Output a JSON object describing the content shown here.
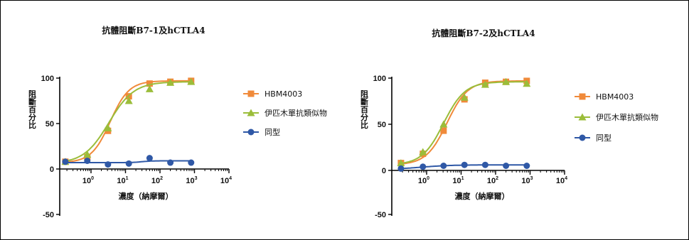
{
  "colors": {
    "hbm": "#f08a3a",
    "ipi": "#9bbd3a",
    "iso": "#2f58a6"
  },
  "chart_data": [
    {
      "type": "line",
      "title": "抗體阻斷B7-1及hCTLA4",
      "xlabel": "濃度（納摩爾）",
      "ylabel": "阻斷百分比",
      "xscale": "log",
      "xlim": [
        0.12,
        10000
      ],
      "ylim": [
        -50,
        100
      ],
      "xticks": [
        {
          "base": "10",
          "exp": "0",
          "value": 1
        },
        {
          "base": "10",
          "exp": "1",
          "value": 10
        },
        {
          "base": "10",
          "exp": "2",
          "value": 100
        },
        {
          "base": "10",
          "exp": "3",
          "value": 1000
        },
        {
          "base": "10",
          "exp": "4",
          "value": 10000
        }
      ],
      "yticks": [
        "100",
        "50",
        "0",
        "-50"
      ],
      "series": [
        {
          "name": "HBM4003",
          "marker": "square",
          "color_key": "hbm",
          "x": [
            0.18,
            0.78,
            3.1,
            12.5,
            50,
            200,
            800
          ],
          "y": [
            8,
            13,
            42,
            80,
            94,
            96,
            97
          ],
          "curve": {
            "bottom": 7,
            "top": 97,
            "ec50": 3.6,
            "hill": 1.6
          }
        },
        {
          "name": "伊匹木單抗類似物",
          "marker": "triangle",
          "color_key": "ipi",
          "x": [
            0.18,
            0.78,
            3.1,
            12.5,
            50,
            200,
            800
          ],
          "y": [
            8,
            16,
            45,
            75,
            88,
            95,
            96
          ],
          "curve": {
            "bottom": 6,
            "top": 96,
            "ec50": 3.3,
            "hill": 1.2
          }
        },
        {
          "name": "同型",
          "marker": "circle",
          "color_key": "iso",
          "x": [
            0.18,
            0.78,
            3.1,
            12.5,
            50,
            200,
            800
          ],
          "y": [
            8,
            9,
            5,
            6,
            12,
            7,
            7
          ],
          "curve": {
            "bottom": 7,
            "top": 9,
            "ec50": 30,
            "hill": 3
          }
        }
      ],
      "legend": "right"
    },
    {
      "type": "line",
      "title": "抗體阻斷B7-2及hCTLA4",
      "xlabel": "濃度（納摩爾）",
      "ylabel": "阻斷百分比",
      "xscale": "log",
      "xlim": [
        0.12,
        10000
      ],
      "ylim": [
        -50,
        100
      ],
      "xticks": [
        {
          "base": "10",
          "exp": "0",
          "value": 1
        },
        {
          "base": "10",
          "exp": "1",
          "value": 10
        },
        {
          "base": "10",
          "exp": "2",
          "value": 100
        },
        {
          "base": "10",
          "exp": "3",
          "value": 1000
        },
        {
          "base": "10",
          "exp": "4",
          "value": 10000
        }
      ],
      "yticks": [
        "100",
        "50",
        "0",
        "-50"
      ],
      "series": [
        {
          "name": "HBM4003",
          "marker": "square",
          "color_key": "hbm",
          "x": [
            0.18,
            0.78,
            3.1,
            12.5,
            50,
            200,
            800
          ],
          "y": [
            8,
            18,
            43,
            77,
            95,
            96,
            97
          ],
          "curve": {
            "bottom": 6,
            "top": 97,
            "ec50": 3.9,
            "hill": 1.45
          }
        },
        {
          "name": "伊匹木單抗類似物",
          "marker": "triangle",
          "color_key": "ipi",
          "x": [
            0.18,
            0.78,
            3.1,
            12.5,
            50,
            200,
            800
          ],
          "y": [
            8,
            20,
            50,
            79,
            93,
            96,
            94
          ],
          "curve": {
            "bottom": 6,
            "top": 96,
            "ec50": 3.1,
            "hill": 1.4
          }
        },
        {
          "name": "同型",
          "marker": "circle",
          "color_key": "iso",
          "x": [
            0.18,
            0.78,
            3.1,
            12.5,
            50,
            200,
            800
          ],
          "y": [
            2,
            4,
            5,
            6,
            6,
            5,
            5
          ],
          "curve": {
            "bottom": 1,
            "top": 6,
            "ec50": 0.7,
            "hill": 1
          }
        }
      ],
      "legend": "right"
    }
  ]
}
